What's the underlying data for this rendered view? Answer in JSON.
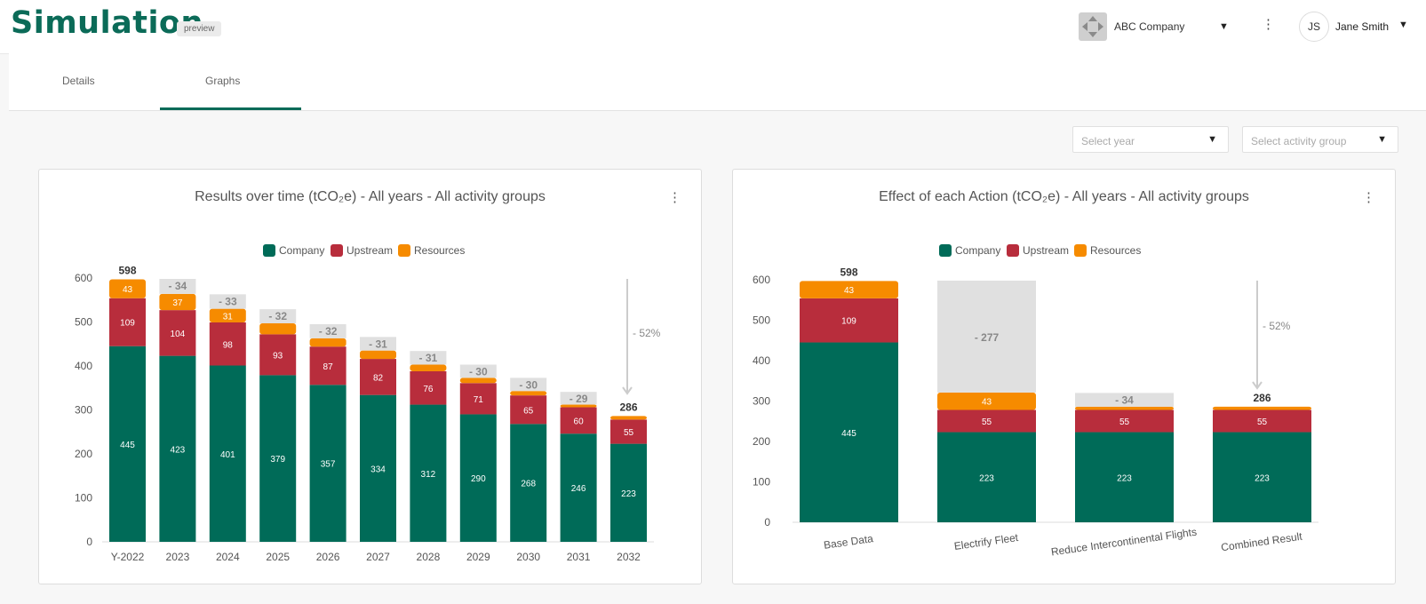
{
  "app": {
    "title": "Simulation",
    "badge": "preview"
  },
  "header": {
    "company_name": "ABC Company",
    "user_initials": "JS",
    "user_name": "Jane Smith"
  },
  "tabs": [
    {
      "label": "Details"
    },
    {
      "label": "Graphs",
      "active": true
    }
  ],
  "filters": {
    "year_placeholder": "Select year",
    "group_placeholder": "Select activity group"
  },
  "colors": {
    "brand": "#0b6b58",
    "company": "#006b58",
    "upstream": "#b82d3c",
    "resources": "#f68b00",
    "reduction": "#e0e0e0"
  },
  "chart_data": [
    {
      "type": "bar",
      "title": "Results over time (tCO₂e) - All years - All activity groups",
      "legend": [
        "Company",
        "Upstream",
        "Resources"
      ],
      "legend_position": "top",
      "categories": [
        "Y-2022",
        "2023",
        "2024",
        "2025",
        "2026",
        "2027",
        "2028",
        "2029",
        "2030",
        "2031",
        "2032"
      ],
      "series": [
        {
          "name": "Company",
          "values": [
            445,
            423,
            401,
            379,
            357,
            334,
            312,
            290,
            268,
            246,
            223
          ]
        },
        {
          "name": "Upstream",
          "values": [
            109,
            104,
            98,
            93,
            87,
            82,
            76,
            71,
            65,
            60,
            55
          ]
        },
        {
          "name": "Resources",
          "values": [
            43,
            37,
            31,
            0,
            0,
            0,
            0,
            0,
            0,
            0,
            0
          ]
        },
        {
          "name": "Reduction",
          "values": [
            0,
            34,
            33,
            32,
            32,
            31,
            31,
            30,
            30,
            29,
            0
          ]
        }
      ],
      "resources_estimated": [
        43,
        37,
        31,
        25,
        19,
        19,
        15,
        12,
        10,
        6,
        8
      ],
      "reduction_labels": [
        "",
        "- 34",
        "- 33",
        "- 32",
        "- 32",
        "- 31",
        "- 31",
        "- 30",
        "- 30",
        "- 29",
        ""
      ],
      "totals": [
        {
          "index": 0,
          "label": "598"
        },
        {
          "index": 10,
          "label": "286"
        }
      ],
      "annotation": "- 52%",
      "ylim": [
        0,
        600
      ],
      "yticks": [
        0,
        100,
        200,
        300,
        400,
        500,
        600
      ],
      "xlabel": "",
      "ylabel": "",
      "grid": false
    },
    {
      "type": "bar",
      "title": "Effect of each Action (tCO₂e) - All years - All activity groups",
      "legend": [
        "Company",
        "Upstream",
        "Resources"
      ],
      "legend_position": "top",
      "categories": [
        "Base Data",
        "Electrify Fleet",
        "Reduce Intercontinental Flights",
        "Combined Result"
      ],
      "series": [
        {
          "name": "Company",
          "values": [
            445,
            223,
            223,
            223
          ]
        },
        {
          "name": "Upstream",
          "values": [
            109,
            55,
            55,
            55
          ]
        },
        {
          "name": "Resources",
          "values": [
            43,
            43,
            8,
            8
          ]
        },
        {
          "name": "Reduction",
          "values": [
            0,
            277,
            34,
            0
          ]
        }
      ],
      "resources_labels": [
        "43",
        "43",
        "",
        ""
      ],
      "reduction_labels": [
        "",
        "- 277",
        "- 34",
        ""
      ],
      "totals": [
        {
          "index": 0,
          "label": "598"
        },
        {
          "index": 3,
          "label": "286"
        }
      ],
      "annotation": "- 52%",
      "ylim": [
        0,
        600
      ],
      "yticks": [
        0,
        100,
        200,
        300,
        400,
        500,
        600
      ],
      "xlabel": "",
      "ylabel": "",
      "grid": false
    }
  ]
}
